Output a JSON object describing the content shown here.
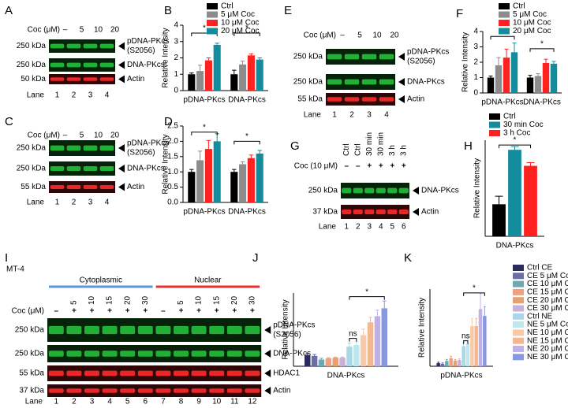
{
  "chart_data": [
    {
      "type": "bar",
      "label": "B",
      "ylabel": "Relative Intensity",
      "categories": [
        "pDNA-PKcs",
        "DNA-PKcs"
      ],
      "series": [
        {
          "name": "Ctrl",
          "color": "#000000",
          "values": [
            1,
            1
          ],
          "errors": [
            0.08,
            0.25
          ]
        },
        {
          "name": "5 μM Coc",
          "color": "#8c8c8c",
          "values": [
            1.2,
            1.6
          ],
          "errors": [
            0.35,
            0.2
          ]
        },
        {
          "name": "10 μM Coc",
          "color": "#ff2020",
          "values": [
            1.85,
            2.15
          ],
          "errors": [
            0.15,
            0.1
          ]
        },
        {
          "name": "20 μM Coc",
          "color": "#138d9c",
          "values": [
            2.8,
            1.9
          ],
          "errors": [
            0.1,
            0.1
          ]
        }
      ],
      "ylim": [
        0,
        4
      ],
      "yticks": [
        0,
        1,
        2,
        3,
        4
      ],
      "annotations": [
        "*",
        "*"
      ]
    },
    {
      "type": "bar",
      "label": "D",
      "ylabel": "Relative Intensity",
      "categories": [
        "pDNA-PKcs",
        "DNA-PKcs"
      ],
      "series": [
        {
          "color": "#000000",
          "values": [
            1,
            1
          ],
          "errors": [
            0.08,
            0.08
          ]
        },
        {
          "color": "#8c8c8c",
          "values": [
            1.38,
            1.25
          ],
          "errors": [
            0.3,
            0.08
          ]
        },
        {
          "color": "#ff2020",
          "values": [
            1.75,
            1.45
          ],
          "errors": [
            0.28,
            0.1
          ]
        },
        {
          "color": "#138d9c",
          "values": [
            2.0,
            1.6
          ],
          "errors": [
            0.25,
            0.1
          ]
        }
      ],
      "ylim": [
        0,
        2.5
      ],
      "yticks": [
        {
          "value": 0,
          "label": "0.0"
        },
        0.5,
        {
          "value": 1,
          "label": "1.0"
        },
        1.5,
        {
          "value": 2,
          "label": "2.0"
        },
        2.5
      ],
      "annotations": [
        "*",
        "*"
      ]
    },
    {
      "type": "bar",
      "label": "F",
      "ylabel": "Relative Intensity",
      "categories": [
        "pDNA-PKcs",
        "DNA-PKcs"
      ],
      "series": [
        {
          "name": "Ctrl",
          "color": "#000000",
          "values": [
            1,
            1
          ],
          "errors": [
            0.1,
            0.15
          ]
        },
        {
          "name": "5 μM Coc",
          "color": "#8c8c8c",
          "values": [
            1.8,
            1.1
          ],
          "errors": [
            0.5,
            0.15
          ]
        },
        {
          "name": "10 μM Coc",
          "color": "#ff2020",
          "values": [
            2.3,
            1.95
          ],
          "errors": [
            0.55,
            0.25
          ]
        },
        {
          "name": "20 μM Coc",
          "color": "#138d9c",
          "values": [
            2.65,
            1.9
          ],
          "errors": [
            0.6,
            0.15
          ]
        }
      ],
      "ylim": [
        0,
        4
      ],
      "yticks": [
        0,
        1,
        2,
        3,
        4
      ],
      "annotations": [
        "*",
        "*"
      ]
    },
    {
      "type": "bar",
      "label": "H",
      "ylabel": "Relative Intensity",
      "categories": [
        "DNA-PKcs"
      ],
      "series": [
        {
          "name": "Ctrl",
          "color": "#000000",
          "values": [
            1
          ],
          "errors": [
            0.25
          ]
        },
        {
          "name": "30 min Coc",
          "color": "#138d9c",
          "values": [
            2.7
          ],
          "errors": [
            0.1
          ]
        },
        {
          "name": "3 h Coc",
          "color": "#ff2020",
          "values": [
            2.2
          ],
          "errors": [
            0.1
          ]
        }
      ],
      "ylim": [
        0,
        3
      ],
      "annotations": [
        "*"
      ]
    },
    {
      "type": "bar",
      "label": "J",
      "ylabel": "Relative Intensity",
      "categories": [
        "DNA-PKcs"
      ],
      "series": [
        {
          "color": "#2b2a5e",
          "values": [
            0.9
          ],
          "errors": [
            0.15
          ]
        },
        {
          "color": "#6a6ea8",
          "values": [
            0.85
          ],
          "errors": [
            0.12
          ]
        },
        {
          "color": "#6fa8b0",
          "values": [
            0.55
          ],
          "errors": [
            0.1
          ]
        },
        {
          "color": "#f0a080",
          "values": [
            0.65
          ],
          "errors": [
            0.05
          ]
        },
        {
          "color": "#e8a070",
          "values": [
            0.7
          ],
          "errors": [
            0.05
          ]
        },
        {
          "color": "#c8b0d8",
          "values": [
            0.7
          ],
          "errors": [
            0.05
          ]
        },
        {
          "color": "#a8d8e8",
          "values": [
            1.6
          ],
          "errors": [
            0.3
          ]
        },
        {
          "color": "#bfe6ec",
          "values": [
            1.75
          ],
          "errors": [
            0.25
          ]
        },
        {
          "color": "#f8c8a8",
          "values": [
            2.55
          ],
          "errors": [
            0.5
          ]
        },
        {
          "color": "#f4b890",
          "values": [
            3.6
          ],
          "errors": [
            0.4
          ]
        },
        {
          "color": "#c0b0e8",
          "values": [
            4.1
          ],
          "errors": [
            0.5
          ]
        },
        {
          "color": "#8898e0",
          "values": [
            4.75
          ],
          "errors": [
            0.6
          ]
        }
      ],
      "ylim": [
        0,
        6
      ],
      "annotations": [
        "ns",
        "*"
      ]
    },
    {
      "type": "bar",
      "label": "K",
      "ylabel": "Relative Intensity",
      "categories": [
        "pDNA-PKcs"
      ],
      "series": [
        {
          "name": "Ctrl CE",
          "color": "#2b2a5e",
          "values": [
            1
          ],
          "errors": [
            0.3
          ]
        },
        {
          "name": "CE 5 μM Coc",
          "color": "#6a6ea8",
          "values": [
            0.8
          ],
          "errors": [
            0.3
          ]
        },
        {
          "name": "CE 10 μM Coc",
          "color": "#6fa8b0",
          "values": [
            1.7
          ],
          "errors": [
            0.5
          ]
        },
        {
          "name": "CE 15 μM Coc",
          "color": "#f0a080",
          "values": [
            2.6
          ],
          "errors": [
            0.7
          ]
        },
        {
          "name": "CE 20 μM Coc",
          "color": "#e8a070",
          "values": [
            1.8
          ],
          "errors": [
            0.4
          ]
        },
        {
          "name": "CE 30 μM Coc",
          "color": "#c8b0d8",
          "values": [
            2.0
          ],
          "errors": [
            0.4
          ]
        },
        {
          "name": "Ctrl NE",
          "color": "#a8d8e8",
          "values": [
            6.5
          ],
          "errors": [
            1.2
          ]
        },
        {
          "name": "NE 5 μM Coc",
          "color": "#bfe6ec",
          "values": [
            7.5
          ],
          "errors": [
            2
          ]
        },
        {
          "name": "NE 10 μM Coc",
          "color": "#f8c8a8",
          "values": [
            13
          ],
          "errors": [
            2.5
          ]
        },
        {
          "name": "NE 15 μM Coc",
          "color": "#f4b890",
          "values": [
            13
          ],
          "errors": [
            2.5
          ]
        },
        {
          "name": "NE 20 μM Coc",
          "color": "#c0b0e8",
          "values": [
            18.5
          ],
          "errors": [
            5
          ]
        },
        {
          "name": "NE 30 μM Coc",
          "color": "#8898e0",
          "values": [
            16.3
          ],
          "errors": [
            3
          ]
        }
      ],
      "ylim": [
        0,
        25
      ],
      "annotations": [
        "ns",
        "*"
      ]
    }
  ],
  "blots": [
    {
      "label": "A",
      "treatment": "Coc (μM)",
      "conditions": [
        "–",
        "5",
        "10",
        "20"
      ],
      "rows": [
        {
          "size": "250 kDa",
          "name": "pDNA-PKcs",
          "note": "(S2056)",
          "color": "#22c03a"
        },
        {
          "size": "250 kDa",
          "name": "DNA-PKcs",
          "color": "#22c03a"
        },
        {
          "size": "50 kDa",
          "name": "Actin",
          "color": "#ff2a2a"
        }
      ],
      "lane_label": "Lane",
      "lanes": [
        1,
        2,
        3,
        4
      ]
    },
    {
      "label": "C",
      "treatment": "Coc (μM)",
      "conditions": [
        "–",
        "5",
        "10",
        "20"
      ],
      "rows": [
        {
          "size": "250 kDa",
          "name": "pDNA-PKcs",
          "note": "(S2056)",
          "color": "#22c03a"
        },
        {
          "size": "250 kDa",
          "name": "DNA-PKcs",
          "color": "#22c03a"
        },
        {
          "size": "55 kDa",
          "name": "Actin",
          "color": "#ff2a2a"
        }
      ],
      "lane_label": "Lane",
      "lanes": [
        1,
        2,
        3,
        4
      ]
    },
    {
      "label": "E",
      "treatment": "Coc (μM)",
      "conditions": [
        "–",
        "5",
        "10",
        "20"
      ],
      "rows": [
        {
          "size": "250 kDa",
          "name": "pDNA-PKcs",
          "note": "(S2056)",
          "color": "#22c03a"
        },
        {
          "size": "250 kDa",
          "name": "DNA-PKcs",
          "color": "#22c03a"
        },
        {
          "size": "55 kDa",
          "name": "Actin",
          "color": "#ff2a2a"
        }
      ],
      "lane_label": "Lane",
      "lanes": [
        1,
        2,
        3,
        4
      ]
    },
    {
      "label": "G",
      "treatment": "Coc (10 μM)",
      "conditions": [
        "Ctrl",
        "Ctrl",
        "30 min",
        "30 min",
        "3 h",
        "3 h"
      ],
      "treatment_levels": [
        "–",
        "–",
        "+",
        "+",
        "+",
        "+"
      ],
      "rows": [
        {
          "size": "250 kDa",
          "name": "DNA-PKcs",
          "color": "#22c03a"
        },
        {
          "size": "37 kDa",
          "name": "Actin",
          "color": "#ff2a2a"
        }
      ],
      "lane_label": "Lane",
      "lanes": [
        1,
        2,
        3,
        4,
        5,
        6
      ]
    },
    {
      "label": "I",
      "cell_line": "MT-4",
      "groups": [
        {
          "name": "Cytoplasmic",
          "color": "#5b9bd5"
        },
        {
          "name": "Nuclear",
          "color": "#e83030"
        }
      ],
      "treatment": "Coc (μM)",
      "conditions": [
        null,
        "5",
        "10",
        "15",
        "20",
        "30",
        null,
        "5",
        "10",
        "15",
        "20",
        "30"
      ],
      "treatment_levels": [
        "–",
        "+",
        "+",
        "+",
        "+",
        "+",
        "–",
        "+",
        "+",
        "+",
        "+",
        "+"
      ],
      "rows": [
        {
          "size": "250 kDa",
          "name": "pDNA-PKcs",
          "note": "(S2056)",
          "color": "#22c03a"
        },
        {
          "size": "250 kDa",
          "name": "DNA-PKcs",
          "color": "#22c03a"
        },
        {
          "size": "55 kDa",
          "name": "HDAC1",
          "color": "#ff2a2a"
        },
        {
          "size": "37 kDa",
          "name": "Actin",
          "color": "#ff2a2a"
        }
      ],
      "lane_label": "Lane",
      "lanes": [
        1,
        2,
        3,
        4,
        5,
        6,
        7,
        8,
        9,
        10,
        11,
        12
      ]
    }
  ]
}
